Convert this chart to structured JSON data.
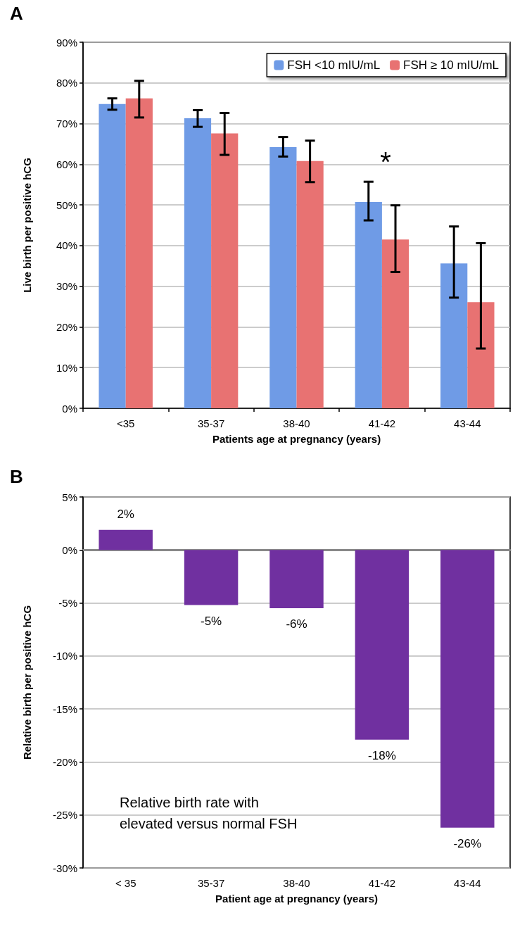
{
  "chart_data": [
    {
      "type": "bar",
      "xlabel": "Patients age at pregnancy (years)",
      "ylabel": "Live birth per positive hCG",
      "categories": [
        "<35",
        "35-37",
        "38-40",
        "41-42",
        "43-44"
      ],
      "series": [
        {
          "name": "FSH <10 mIU/mL",
          "color": "#6f9be6",
          "values": [
            74.8,
            71.3,
            64.2,
            50.7,
            35.6
          ],
          "errors": [
            [
              73.4,
              76.2
            ],
            [
              69.2,
              73.3
            ],
            [
              61.9,
              66.7
            ],
            [
              46.2,
              55.7
            ],
            [
              27.2,
              44.7
            ]
          ]
        },
        {
          "name": "FSH ≥ 10 mIU/mL",
          "color": "#e87272",
          "values": [
            76.2,
            67.6,
            60.8,
            41.5,
            26.1
          ],
          "errors": [
            [
              71.5,
              80.5
            ],
            [
              62.3,
              72.6
            ],
            [
              55.6,
              65.8
            ],
            [
              33.5,
              49.9
            ],
            [
              14.7,
              40.6
            ]
          ]
        }
      ],
      "ylim": [
        0,
        90
      ],
      "yticks": [
        {
          "value": 0,
          "label": "0%"
        },
        {
          "value": 10,
          "label": "10%"
        },
        {
          "value": 20,
          "label": "20%"
        },
        {
          "value": 30,
          "label": "30%"
        },
        {
          "value": 40,
          "label": "40%"
        },
        {
          "value": 50,
          "label": "50%"
        },
        {
          "value": 60,
          "label": "60%"
        },
        {
          "value": 70,
          "label": "70%"
        },
        {
          "value": 80,
          "label": "80%"
        },
        {
          "value": 90,
          "label": "90%"
        }
      ],
      "grid": "y",
      "legend": "top right",
      "annotations": [
        "A",
        "*"
      ]
    },
    {
      "type": "bar",
      "xlabel": "Patient age at pregnancy (years)",
      "ylabel": "Relative birth per positive hCG",
      "categories": [
        "< 35",
        "35-37",
        "38-40",
        "41-42",
        "43-44"
      ],
      "values": [
        1.9,
        -5.2,
        -5.5,
        -17.9,
        -26.2
      ],
      "color": "#7030a0",
      "value_labels": [
        "2%",
        "-5%",
        "-6%",
        "-18%",
        "-26%"
      ],
      "ylim": [
        -30,
        5
      ],
      "yticks": [
        {
          "value": -30,
          "label": "-30%"
        },
        {
          "value": -25,
          "label": "-25%"
        },
        {
          "value": -20,
          "label": "-20%"
        },
        {
          "value": -15,
          "label": "-15%"
        },
        {
          "value": -10,
          "label": "-10%"
        },
        {
          "value": -5,
          "label": "-5%"
        },
        {
          "value": 0,
          "label": "0%"
        },
        {
          "value": 5,
          "label": "5%"
        }
      ],
      "grid": "y",
      "annotations": [
        "B",
        "Relative birth rate with\nelevated versus normal FSH"
      ]
    }
  ]
}
